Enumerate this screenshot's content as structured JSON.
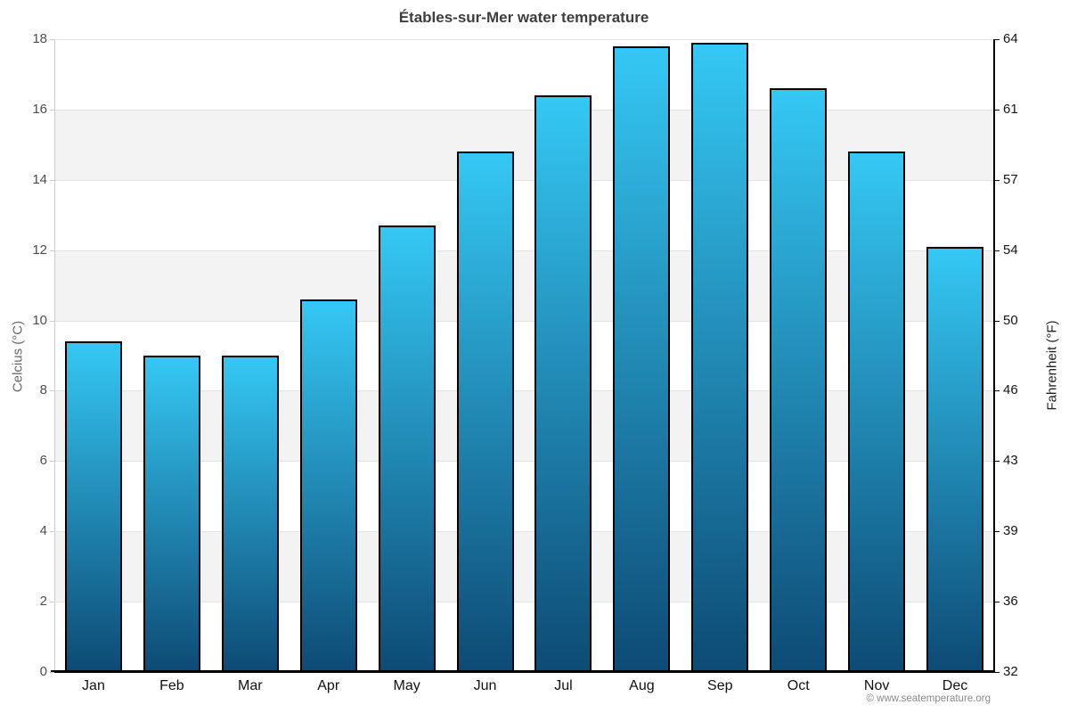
{
  "chart_data": {
    "type": "bar",
    "title": "Étables-sur-Mer water temperature",
    "categories": [
      "Jan",
      "Feb",
      "Mar",
      "Apr",
      "May",
      "Jun",
      "Jul",
      "Aug",
      "Sep",
      "Oct",
      "Nov",
      "Dec"
    ],
    "values": [
      9.4,
      9.0,
      9.0,
      10.6,
      12.7,
      14.8,
      16.4,
      17.8,
      17.9,
      16.6,
      14.8,
      12.1
    ],
    "series_name": "Water temperature",
    "ylabel_left": "Celcius (°C)",
    "ylabel_right": "Fahrenheit (°F)",
    "yticks_celsius": [
      0,
      2,
      4,
      6,
      8,
      10,
      12,
      14,
      16,
      18
    ],
    "yticks_fahrenheit": [
      32,
      36,
      39,
      43,
      46,
      50,
      54,
      57,
      61,
      64
    ],
    "ylim": [
      0,
      18
    ],
    "grid": true,
    "legend": "none",
    "colors": {
      "bar_top": "#35c8f4",
      "bar_bottom": "#0d4b75",
      "bar_border": "#000000",
      "band_gray": "#f3f3f3",
      "band_white": "#ffffff",
      "gridline": "#e2e2e2"
    }
  },
  "footer": {
    "credit": "© www.seatemperature.org"
  }
}
